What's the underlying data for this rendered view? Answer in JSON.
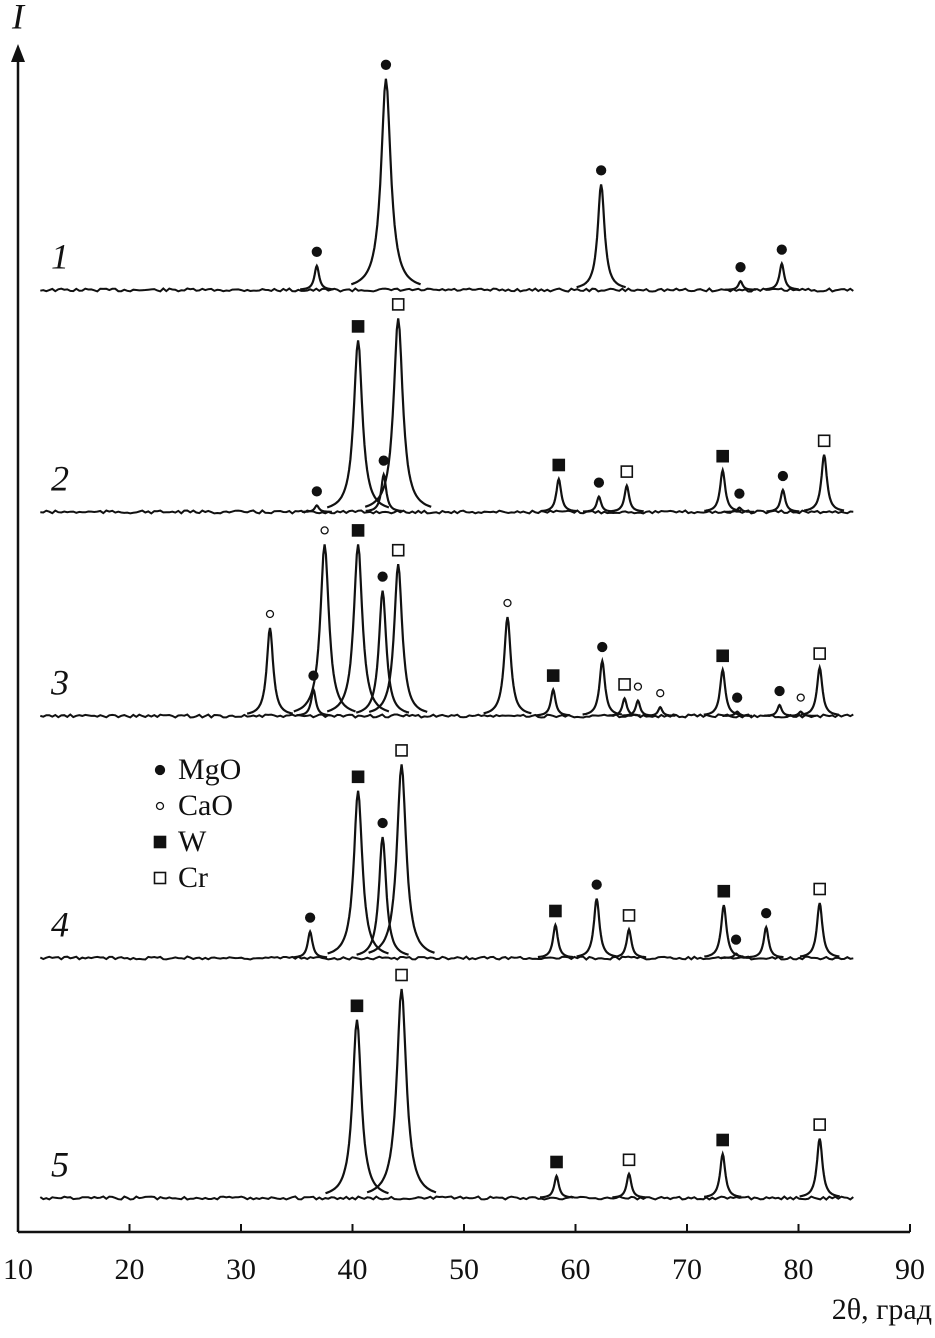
{
  "chart_data": {
    "type": "xrd",
    "y_label": "I",
    "x_label": "2θ, град",
    "xlim": [
      10,
      90
    ],
    "xticks": [
      10,
      20,
      30,
      40,
      50,
      60,
      70,
      80,
      90
    ],
    "ylim": [
      0,
      100
    ],
    "legend": [
      {
        "name": "MgO",
        "marker": "filled-circle"
      },
      {
        "name": "CaO",
        "marker": "open-circle"
      },
      {
        "name": "W",
        "marker": "filled-square"
      },
      {
        "name": "Cr",
        "marker": "open-square"
      }
    ],
    "series": [
      {
        "name": "1",
        "color": "#111",
        "x": [
          36.8,
          43.0,
          62.3,
          74.8,
          78.5
        ],
        "values": [
          11,
          96,
          48,
          4,
          12
        ],
        "phases": [
          "MgO",
          "MgO",
          "MgO",
          "MgO",
          "MgO"
        ]
      },
      {
        "name": "2",
        "color": "#111",
        "x": [
          36.8,
          40.5,
          42.8,
          44.1,
          58.5,
          62.1,
          64.6,
          73.2,
          74.7,
          78.6,
          82.3
        ],
        "values": [
          3,
          78,
          17,
          88,
          15,
          7,
          12,
          19,
          2,
          10,
          26
        ],
        "phases": [
          "MgO",
          "W",
          "MgO",
          "Cr",
          "W",
          "MgO",
          "Cr",
          "W",
          "MgO",
          "MgO",
          "Cr"
        ]
      },
      {
        "name": "3",
        "color": "#111",
        "x": [
          32.6,
          36.5,
          37.5,
          40.5,
          42.7,
          44.1,
          53.9,
          58.0,
          62.4,
          64.4,
          65.6,
          67.6,
          73.2,
          74.5,
          78.3,
          80.2,
          81.9
        ],
        "values": [
          40,
          12,
          78,
          78,
          57,
          69,
          45,
          12,
          25,
          8,
          7,
          4,
          21,
          2,
          5,
          2,
          22
        ],
        "phases": [
          "CaO",
          "MgO",
          "CaO",
          "W",
          "MgO",
          "Cr",
          "CaO",
          "W",
          "MgO",
          "Cr",
          "CaO",
          "CaO",
          "W",
          "MgO",
          "MgO",
          "CaO",
          "Cr"
        ]
      },
      {
        "name": "4",
        "color": "#111",
        "x": [
          36.2,
          40.5,
          42.7,
          44.4,
          58.2,
          61.9,
          64.8,
          73.3,
          74.4,
          77.1,
          81.9
        ],
        "values": [
          12,
          76,
          55,
          88,
          15,
          27,
          13,
          24,
          2,
          14,
          25
        ],
        "phases": [
          "MgO",
          "W",
          "MgO",
          "Cr",
          "W",
          "MgO",
          "Cr",
          "W",
          "MgO",
          "MgO",
          "Cr"
        ]
      },
      {
        "name": "5",
        "color": "#111",
        "x": [
          40.4,
          44.4,
          58.3,
          64.8,
          73.2,
          81.9
        ],
        "values": [
          81,
          95,
          10,
          11,
          20,
          27
        ],
        "phases": [
          "W",
          "Cr",
          "W",
          "Cr",
          "W",
          "Cr"
        ]
      }
    ]
  }
}
